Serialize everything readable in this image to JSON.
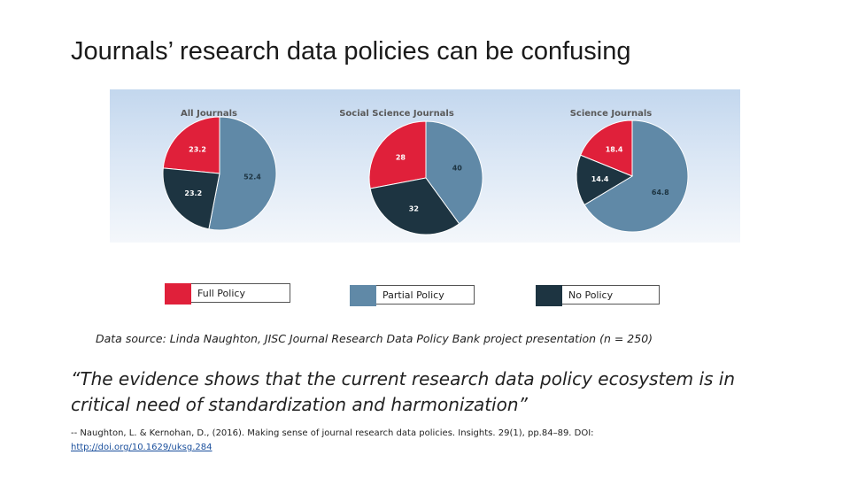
{
  "slide": {
    "title": "Journals’ research data policies can be confusing",
    "source_note": "Data source: Linda Naughton, JISC Journal Research Data Policy Bank project presentation (n = 250)",
    "quote_line1": "“The evidence shows that the current research data policy ecosystem is in",
    "quote_line2": "critical need of standardization and harmonization”",
    "citation_text": "-- Naughton, L. & Kernohan, D., (2016). Making sense of journal research data policies. Insights. 29(1), pp.84–89. DOI:",
    "citation_link": "http://doi.org/10.1629/uksg.284"
  },
  "colors": {
    "full": "#e0203a",
    "partial": "#6089a7",
    "none": "#1d3441"
  },
  "legend": [
    {
      "key": "full",
      "label": "Full Policy"
    },
    {
      "key": "partial",
      "label": "Partial Policy"
    },
    {
      "key": "none",
      "label": "No Policy"
    }
  ],
  "chart_data": [
    {
      "type": "pie",
      "title": "All Journals",
      "slices": [
        {
          "category": "Full Policy",
          "key": "full",
          "value": 23.2,
          "label": "23.2"
        },
        {
          "category": "Partial Policy",
          "key": "partial",
          "value": 52.4,
          "label": "52.4"
        },
        {
          "category": "No Policy",
          "key": "none",
          "value": 23.2,
          "label": "23.2"
        }
      ]
    },
    {
      "type": "pie",
      "title": "Social Science Journals",
      "slices": [
        {
          "category": "Full Policy",
          "key": "full",
          "value": 28,
          "label": "28"
        },
        {
          "category": "Partial Policy",
          "key": "partial",
          "value": 40,
          "label": "40"
        },
        {
          "category": "No Policy",
          "key": "none",
          "value": 32,
          "label": "32"
        }
      ]
    },
    {
      "type": "pie",
      "title": "Science Journals",
      "slices": [
        {
          "category": "Full Policy",
          "key": "full",
          "value": 18.4,
          "label": "18.4"
        },
        {
          "category": "Partial Policy",
          "key": "partial",
          "value": 64.8,
          "label": "64.8"
        },
        {
          "category": "No Policy",
          "key": "none",
          "value": 14.4,
          "label": "14.4"
        }
      ]
    }
  ]
}
